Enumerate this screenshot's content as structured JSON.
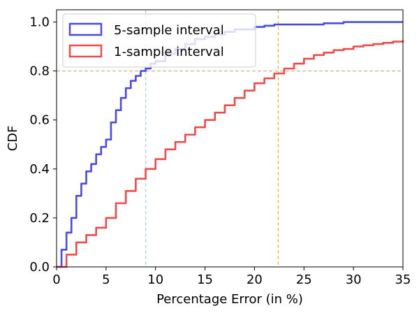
{
  "chart_data": {
    "type": "line",
    "title": "",
    "xlabel": "Percentage Error (in %)",
    "ylabel": "CDF",
    "xlim": [
      0,
      35
    ],
    "ylim": [
      0,
      1.05
    ],
    "x_ticks": [
      0,
      5,
      10,
      15,
      20,
      25,
      30,
      35
    ],
    "y_ticks": [
      0.0,
      0.2,
      0.4,
      0.6,
      0.8,
      1.0
    ],
    "x_tick_labels": [
      "0",
      "5",
      "10",
      "15",
      "20",
      "25",
      "30",
      "35"
    ],
    "y_tick_labels": [
      "0.0",
      "0.2",
      "0.4",
      "0.6",
      "0.8",
      "1.0"
    ],
    "grid": false,
    "legend": "top-left",
    "reference_lines": [
      {
        "orientation": "horizontal",
        "value": 0.8,
        "color": "#c8b88a"
      },
      {
        "orientation": "vertical",
        "value": 9.0,
        "color": "#a8cce8"
      },
      {
        "orientation": "vertical",
        "value": 22.4,
        "color": "#f0b040"
      }
    ],
    "series": [
      {
        "name": "5-sample interval",
        "color": "#4a4ae6",
        "x": [
          0,
          0.5,
          1,
          1.5,
          2,
          2.5,
          3,
          3.5,
          4,
          4.5,
          5,
          5.5,
          6,
          6.5,
          7,
          7.5,
          8,
          8.5,
          9,
          9.5,
          10,
          11,
          12,
          13,
          14,
          15,
          16,
          17,
          18,
          19,
          20,
          21,
          22,
          23,
          24,
          25,
          26,
          27,
          28,
          29,
          30,
          31,
          32,
          33,
          34,
          35
        ],
        "y": [
          0.0,
          0.07,
          0.14,
          0.2,
          0.29,
          0.34,
          0.39,
          0.42,
          0.46,
          0.49,
          0.52,
          0.59,
          0.64,
          0.69,
          0.73,
          0.76,
          0.78,
          0.8,
          0.81,
          0.83,
          0.84,
          0.87,
          0.89,
          0.91,
          0.93,
          0.94,
          0.95,
          0.96,
          0.97,
          0.97,
          0.98,
          0.985,
          0.99,
          0.99,
          0.99,
          0.99,
          0.99,
          0.995,
          0.995,
          1.0,
          1.0,
          1.0,
          1.0,
          1.0,
          1.0,
          1.0
        ]
      },
      {
        "name": "1-sample interval",
        "color": "#ee4a4a",
        "x": [
          0,
          1,
          2,
          3,
          4,
          5,
          6,
          7,
          8,
          9,
          10,
          11,
          12,
          13,
          14,
          15,
          16,
          17,
          18,
          19,
          20,
          21,
          22,
          23,
          24,
          25,
          26,
          27,
          28,
          29,
          30,
          31,
          32,
          33,
          34,
          35
        ],
        "y": [
          0.0,
          0.05,
          0.1,
          0.13,
          0.16,
          0.2,
          0.26,
          0.31,
          0.36,
          0.4,
          0.44,
          0.48,
          0.51,
          0.54,
          0.57,
          0.6,
          0.63,
          0.66,
          0.69,
          0.72,
          0.75,
          0.77,
          0.79,
          0.81,
          0.83,
          0.85,
          0.865,
          0.875,
          0.885,
          0.89,
          0.9,
          0.905,
          0.91,
          0.915,
          0.92,
          0.925
        ]
      }
    ]
  }
}
